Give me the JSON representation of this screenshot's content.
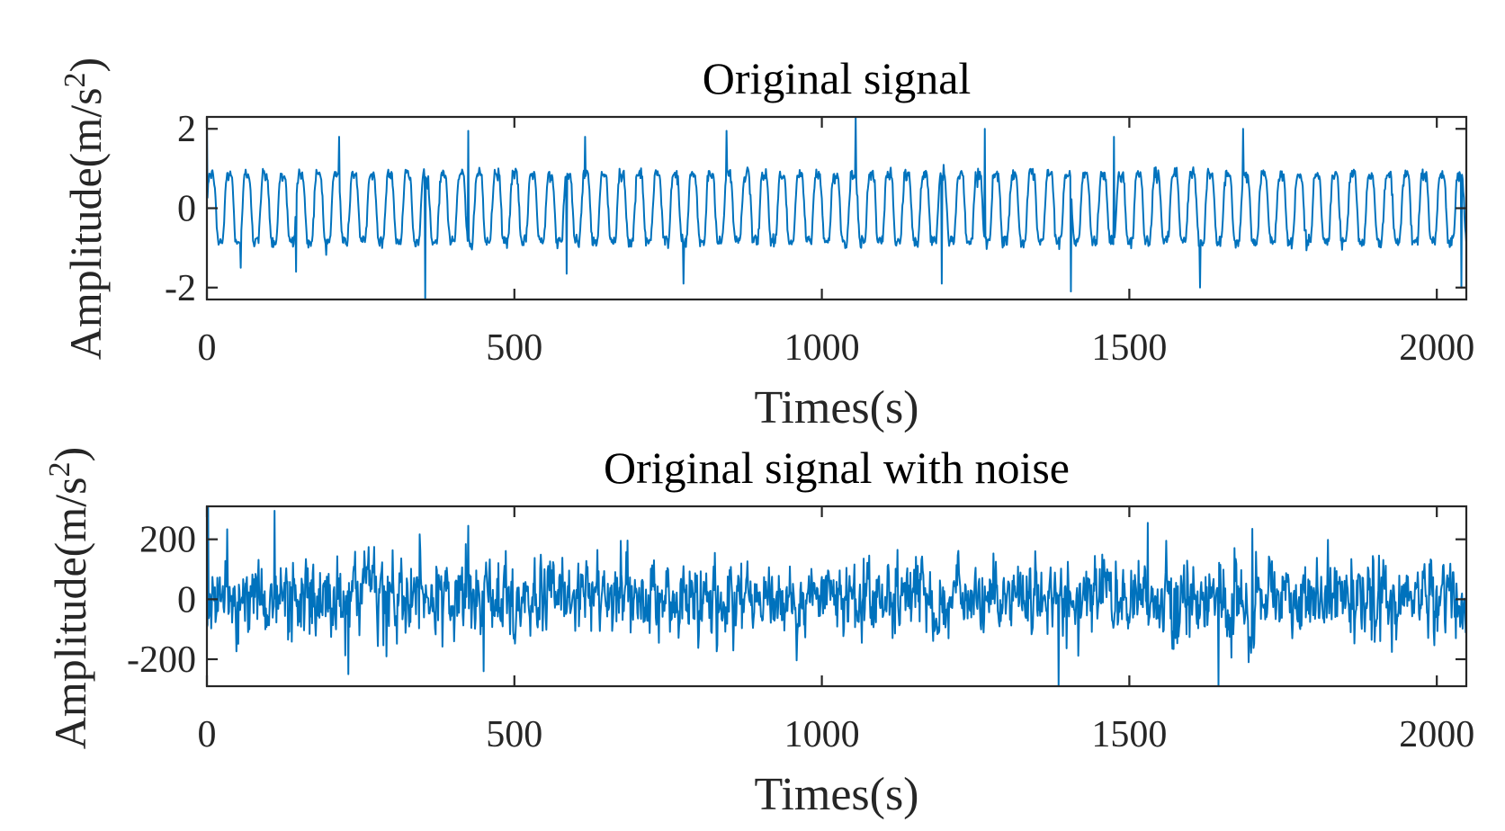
{
  "chart_data": [
    {
      "type": "line",
      "title": "Original signal",
      "xlabel": "Times(s)",
      "ylabel": "Amplitude(m/s",
      "ylabel_sup": "2",
      "ylabel_close": ")",
      "xlim": [
        0,
        2048
      ],
      "ylim": [
        -2.3,
        2.3
      ],
      "xticks": [
        0,
        500,
        1000,
        1500,
        2000
      ],
      "xtick_labels": [
        "0",
        "500",
        "1000",
        "1500",
        "2000"
      ],
      "yticks": [
        -2,
        0,
        2
      ],
      "ytick_labels": [
        "-2",
        "0",
        "2"
      ],
      "grid": false,
      "series": [
        {
          "color": "#0072BD",
          "kind": "periodic oscillation with impulses",
          "baseline_amplitude": 1.0,
          "period": 29,
          "peak_range": [
            -2.3,
            2.3
          ],
          "notable_points": [
            {
              "x": 0,
              "y": 2.3
            },
            {
              "x": 55,
              "y": -1.5
            },
            {
              "x": 145,
              "y": -1.6
            },
            {
              "x": 215,
              "y": 1.8
            },
            {
              "x": 355,
              "y": -2.3
            },
            {
              "x": 425,
              "y": 1.95
            },
            {
              "x": 585,
              "y": -1.65
            },
            {
              "x": 615,
              "y": 1.8
            },
            {
              "x": 775,
              "y": -1.9
            },
            {
              "x": 845,
              "y": 1.95
            },
            {
              "x": 1055,
              "y": 2.3
            },
            {
              "x": 1195,
              "y": -1.9
            },
            {
              "x": 1265,
              "y": 2.0
            },
            {
              "x": 1405,
              "y": -2.1
            },
            {
              "x": 1475,
              "y": 1.8
            },
            {
              "x": 1615,
              "y": -2.0
            },
            {
              "x": 1685,
              "y": 2.0
            },
            {
              "x": 2040,
              "y": -2.0
            }
          ]
        }
      ]
    },
    {
      "type": "line",
      "title": "Original signal with noise",
      "xlabel": "Times(s)",
      "ylabel": "Amplitude(m/s",
      "ylabel_sup": "2",
      "ylabel_close": ")",
      "xlim": [
        0,
        2048
      ],
      "ylim": [
        -290,
        310
      ],
      "xticks": [
        0,
        500,
        1000,
        1500,
        2000
      ],
      "xtick_labels": [
        "0",
        "500",
        "1000",
        "1500",
        "2000"
      ],
      "yticks": [
        -200,
        0,
        200
      ],
      "ytick_labels": [
        "-200",
        "0",
        "200"
      ],
      "grid": false,
      "series": [
        {
          "color": "#0072BD",
          "kind": "noise-dominated signal",
          "typical_range": [
            -150,
            150
          ],
          "notable_points": [
            {
              "x": 2,
              "y": 305
            },
            {
              "x": 110,
              "y": 295
            },
            {
              "x": 230,
              "y": -250
            },
            {
              "x": 425,
              "y": 245
            },
            {
              "x": 450,
              "y": -240
            },
            {
              "x": 1385,
              "y": -290
            },
            {
              "x": 1530,
              "y": 255
            },
            {
              "x": 1645,
              "y": -290
            },
            {
              "x": 1700,
              "y": 235
            }
          ]
        }
      ]
    }
  ]
}
